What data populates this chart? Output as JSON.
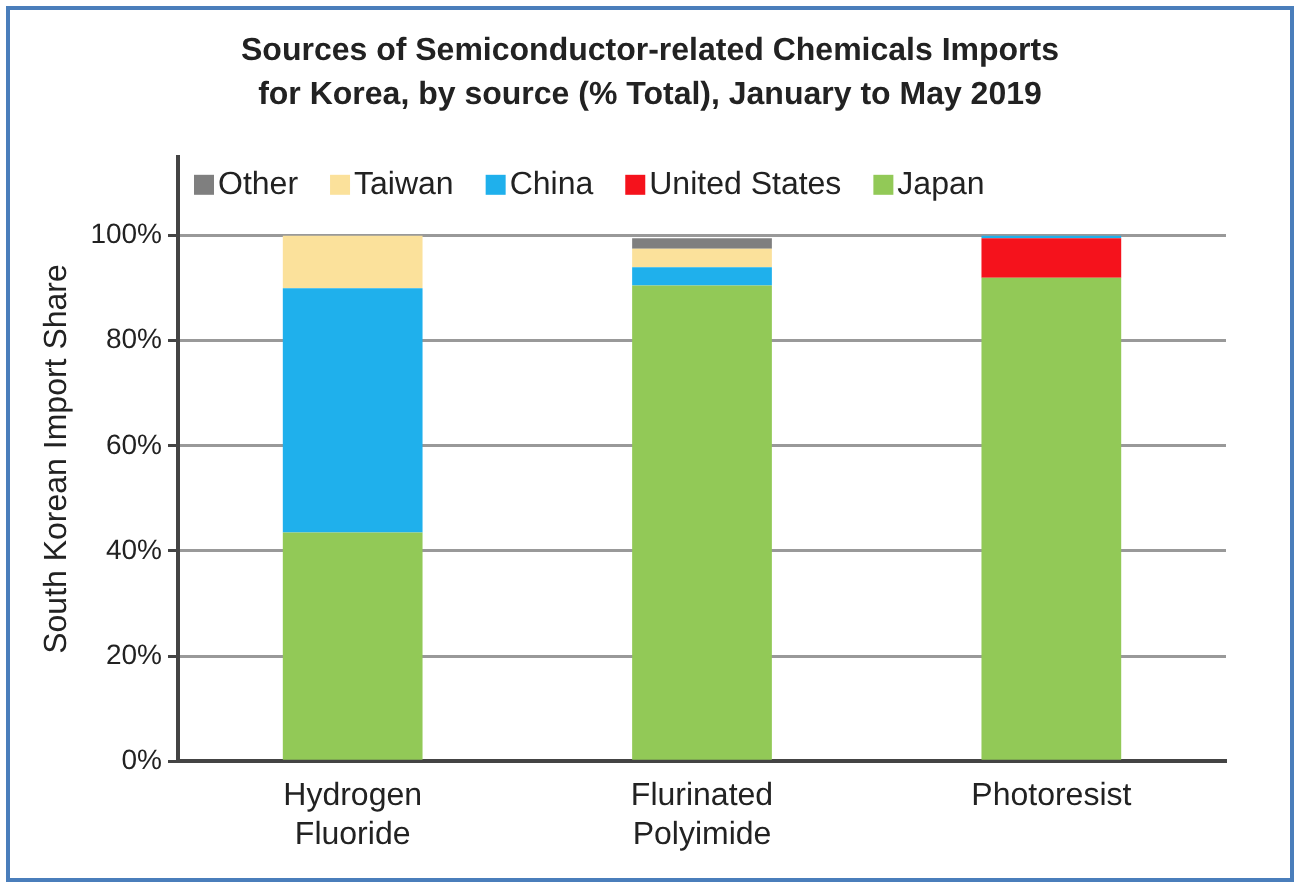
{
  "chart_data": {
    "type": "bar",
    "stacked": true,
    "title": "Sources of Semiconductor-related Chemicals Imports\nfor Korea, by source (% Total), January to May 2019",
    "ylabel": "South Korean Import Share",
    "categories": [
      "Hydrogen\nFluoride",
      "Flurinated\nPolyimide",
      "Photoresist"
    ],
    "series": [
      {
        "name": "Japan",
        "color": "#92c957",
        "values": [
          43.5,
          90.5,
          92
        ]
      },
      {
        "name": "United States",
        "color": "#f5121c",
        "values": [
          0,
          0,
          7.5
        ]
      },
      {
        "name": "China",
        "color": "#1fb0ec",
        "values": [
          46.5,
          3.5,
          0.5
        ]
      },
      {
        "name": "Taiwan",
        "color": "#fbe19b",
        "values": [
          10,
          3.5,
          0
        ]
      },
      {
        "name": "Other",
        "color": "#7f7f7f",
        "values": [
          0,
          2,
          0
        ]
      }
    ],
    "ylim": [
      0,
      115
    ],
    "yticks": [
      {
        "value": 0,
        "label": "0%"
      },
      {
        "value": 20,
        "label": "20%"
      },
      {
        "value": 40,
        "label": "40%"
      },
      {
        "value": 60,
        "label": "60%"
      },
      {
        "value": 80,
        "label": "80%"
      },
      {
        "value": 100,
        "label": "100%"
      }
    ],
    "grid": "y",
    "legend": "top"
  }
}
